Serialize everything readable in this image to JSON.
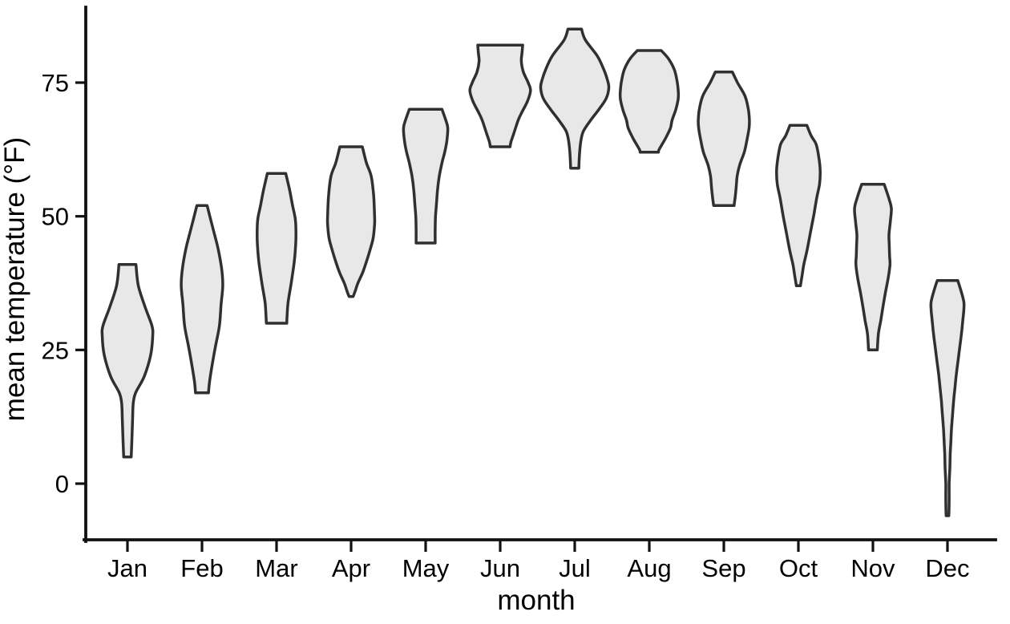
{
  "figure": {
    "background_color": "#ffffff",
    "axis_color": "#111111",
    "violin_fill_color": "#e8e8e8",
    "violin_stroke_color": "#303030"
  },
  "chart_data": {
    "type": "violin",
    "title": "",
    "xlabel": "month",
    "ylabel": "mean temperature (°F)",
    "y_ticks": [
      0,
      25,
      50,
      75
    ],
    "ylim": [
      -10,
      90
    ],
    "grid": false,
    "legend": false,
    "categories": [
      "Jan",
      "Feb",
      "Mar",
      "Apr",
      "May",
      "Jun",
      "Jul",
      "Aug",
      "Sep",
      "Oct",
      "Nov",
      "Dec"
    ],
    "series": [
      {
        "month": "Jan",
        "min": 5,
        "max": 41,
        "widest_at": 28,
        "profile": [
          [
            41,
            0.25
          ],
          [
            37,
            0.32
          ],
          [
            33,
            0.52
          ],
          [
            29.5,
            0.72
          ],
          [
            27.5,
            0.74
          ],
          [
            24,
            0.68
          ],
          [
            20,
            0.49
          ],
          [
            17,
            0.24
          ],
          [
            15,
            0.17
          ],
          [
            12,
            0.15
          ],
          [
            8,
            0.13
          ],
          [
            5,
            0.11
          ]
        ]
      },
      {
        "month": "Feb",
        "min": 17,
        "max": 52,
        "widest_at": 37,
        "profile": [
          [
            52,
            0.15
          ],
          [
            48,
            0.31
          ],
          [
            44,
            0.47
          ],
          [
            40,
            0.58
          ],
          [
            37,
            0.61
          ],
          [
            33.5,
            0.56
          ],
          [
            29.5,
            0.51
          ],
          [
            25.5,
            0.39
          ],
          [
            21.5,
            0.28
          ],
          [
            19,
            0.22
          ],
          [
            17,
            0.19
          ]
        ]
      },
      {
        "month": "Mar",
        "min": 30,
        "max": 58,
        "widest_at": 47,
        "profile": [
          [
            58,
            0.27
          ],
          [
            55,
            0.38
          ],
          [
            52,
            0.47
          ],
          [
            49.5,
            0.55
          ],
          [
            47,
            0.57
          ],
          [
            44.5,
            0.56
          ],
          [
            41.5,
            0.52
          ],
          [
            37.5,
            0.43
          ],
          [
            34,
            0.34
          ],
          [
            31.5,
            0.31
          ],
          [
            30,
            0.3
          ]
        ]
      },
      {
        "month": "Apr",
        "min": 35,
        "max": 63,
        "widest_at": 49,
        "profile": [
          [
            63,
            0.33
          ],
          [
            60,
            0.45
          ],
          [
            57.5,
            0.59
          ],
          [
            54,
            0.66
          ],
          [
            50,
            0.69
          ],
          [
            48.5,
            0.69
          ],
          [
            46,
            0.65
          ],
          [
            44,
            0.57
          ],
          [
            41.5,
            0.45
          ],
          [
            39.5,
            0.34
          ],
          [
            37.5,
            0.2
          ],
          [
            36,
            0.12
          ],
          [
            35,
            0.06
          ]
        ]
      },
      {
        "month": "May",
        "min": 45,
        "max": 70,
        "widest_at": 66.5,
        "profile": [
          [
            70,
            0.48
          ],
          [
            68,
            0.59
          ],
          [
            66.5,
            0.65
          ],
          [
            64,
            0.62
          ],
          [
            62,
            0.56
          ],
          [
            60,
            0.48
          ],
          [
            57.5,
            0.4
          ],
          [
            55,
            0.35
          ],
          [
            52.5,
            0.32
          ],
          [
            50,
            0.29
          ],
          [
            47.5,
            0.28
          ],
          [
            45,
            0.28
          ]
        ]
      },
      {
        "month": "Jun",
        "min": 63,
        "max": 82,
        "widest_at": 73.5,
        "profile": [
          [
            82,
            0.66
          ],
          [
            80.5,
            0.64
          ],
          [
            79,
            0.62
          ],
          [
            77,
            0.68
          ],
          [
            75,
            0.82
          ],
          [
            73.5,
            0.89
          ],
          [
            71.5,
            0.8
          ],
          [
            69.5,
            0.64
          ],
          [
            68,
            0.53
          ],
          [
            65.5,
            0.4
          ],
          [
            64,
            0.32
          ],
          [
            63,
            0.29
          ]
        ]
      },
      {
        "month": "Jul",
        "min": 59,
        "max": 85,
        "widest_at": 74,
        "profile": [
          [
            85,
            0.2
          ],
          [
            83,
            0.31
          ],
          [
            80,
            0.66
          ],
          [
            77.5,
            0.85
          ],
          [
            75.5,
            0.96
          ],
          [
            74,
            1.0
          ],
          [
            72,
            0.92
          ],
          [
            70,
            0.71
          ],
          [
            68,
            0.47
          ],
          [
            66,
            0.26
          ],
          [
            64.5,
            0.19
          ],
          [
            62.5,
            0.15
          ],
          [
            60.5,
            0.13
          ],
          [
            59,
            0.12
          ]
        ]
      },
      {
        "month": "Aug",
        "min": 62,
        "max": 81,
        "widest_at": 73,
        "profile": [
          [
            81,
            0.35
          ],
          [
            79.5,
            0.56
          ],
          [
            77.5,
            0.73
          ],
          [
            75.5,
            0.81
          ],
          [
            73.5,
            0.85
          ],
          [
            72,
            0.85
          ],
          [
            70,
            0.78
          ],
          [
            68,
            0.67
          ],
          [
            66.5,
            0.62
          ],
          [
            64.5,
            0.47
          ],
          [
            62.5,
            0.29
          ],
          [
            62,
            0.27
          ]
        ]
      },
      {
        "month": "Sep",
        "min": 52,
        "max": 77,
        "widest_at": 68,
        "profile": [
          [
            77,
            0.25
          ],
          [
            75,
            0.4
          ],
          [
            72.5,
            0.62
          ],
          [
            70,
            0.72
          ],
          [
            68,
            0.75
          ],
          [
            66.5,
            0.74
          ],
          [
            64,
            0.67
          ],
          [
            62,
            0.6
          ],
          [
            59.5,
            0.46
          ],
          [
            57.5,
            0.39
          ],
          [
            56,
            0.37
          ],
          [
            54,
            0.34
          ],
          [
            52,
            0.3
          ]
        ]
      },
      {
        "month": "Oct",
        "min": 37,
        "max": 67,
        "widest_at": 58.5,
        "profile": [
          [
            67,
            0.25
          ],
          [
            65,
            0.38
          ],
          [
            63.5,
            0.52
          ],
          [
            61,
            0.6
          ],
          [
            58.5,
            0.64
          ],
          [
            56,
            0.62
          ],
          [
            53.5,
            0.54
          ],
          [
            50.5,
            0.46
          ],
          [
            48.5,
            0.4
          ],
          [
            45.5,
            0.31
          ],
          [
            43.5,
            0.25
          ],
          [
            41,
            0.16
          ],
          [
            39,
            0.11
          ],
          [
            37,
            0.06
          ]
        ]
      },
      {
        "month": "Nov",
        "min": 25,
        "max": 56,
        "widest_at": 51.5,
        "profile": [
          [
            56,
            0.33
          ],
          [
            53.5,
            0.46
          ],
          [
            51.5,
            0.54
          ],
          [
            49,
            0.51
          ],
          [
            46.5,
            0.47
          ],
          [
            44.5,
            0.48
          ],
          [
            42.5,
            0.49
          ],
          [
            41,
            0.5
          ],
          [
            38.5,
            0.45
          ],
          [
            35.5,
            0.36
          ],
          [
            32.5,
            0.28
          ],
          [
            30.5,
            0.23
          ],
          [
            28,
            0.16
          ],
          [
            25,
            0.13
          ]
        ]
      },
      {
        "month": "Dec",
        "min": -6,
        "max": 38,
        "widest_at": 33,
        "profile": [
          [
            38,
            0.3
          ],
          [
            36,
            0.4
          ],
          [
            34,
            0.48
          ],
          [
            32.5,
            0.48
          ],
          [
            30.5,
            0.45
          ],
          [
            28,
            0.41
          ],
          [
            25.5,
            0.36
          ],
          [
            23,
            0.31
          ],
          [
            20.5,
            0.26
          ],
          [
            18,
            0.22
          ],
          [
            15.5,
            0.18
          ],
          [
            13,
            0.15
          ],
          [
            10.5,
            0.12
          ],
          [
            8,
            0.1
          ],
          [
            5.5,
            0.08
          ],
          [
            3,
            0.07
          ],
          [
            0,
            0.05
          ],
          [
            -3,
            0.05
          ],
          [
            -6,
            0.04
          ]
        ]
      }
    ]
  }
}
